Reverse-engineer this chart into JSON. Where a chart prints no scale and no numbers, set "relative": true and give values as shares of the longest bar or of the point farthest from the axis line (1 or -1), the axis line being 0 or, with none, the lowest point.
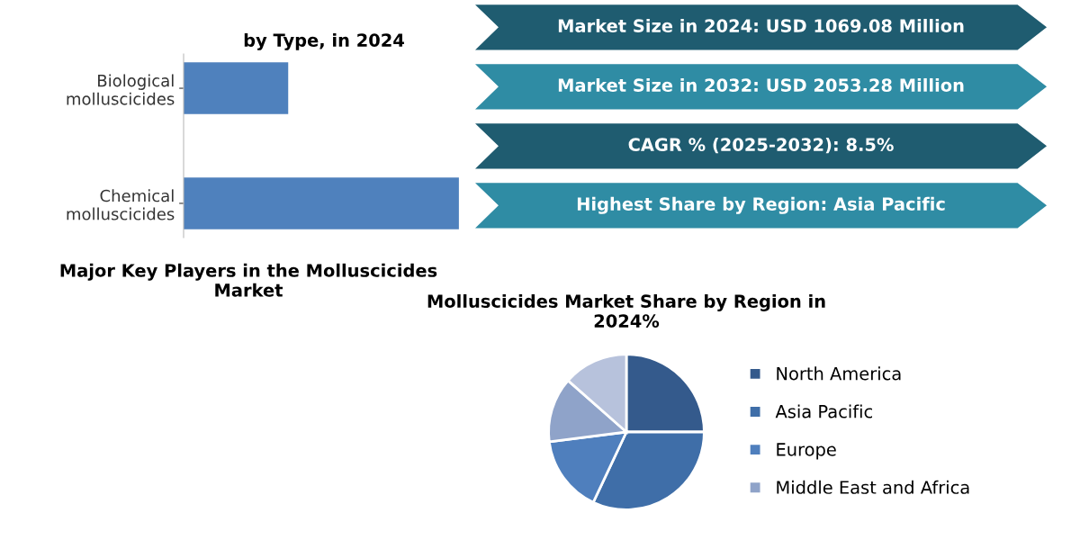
{
  "chart_data": [
    {
      "type": "bar",
      "title": "by Type, in 2024",
      "orientation": "horizontal",
      "relative": true,
      "categories": [
        "Biological\nmolluscicides",
        "Chemical\nmolluscicides"
      ],
      "values": [
        0.38,
        1
      ],
      "color": "#4f81bd"
    },
    {
      "type": "other",
      "annotations": [
        "Market Size in 2024: USD 1069.08 Million",
        "Market Size in 2032: USD 2053.28 Million",
        "CAGR % (2025-2032): 8.5%",
        "Highest Share by Region: Asia Pacific"
      ],
      "colors": [
        "#1f5c70",
        "#2f8ca4",
        "#1f5c70",
        "#2f8ca4"
      ]
    },
    {
      "type": "other",
      "title": "Major Key Players in the Molluscicides\nMarket"
    },
    {
      "type": "pie",
      "title": "Molluscicides Market Share by Region in\n2024%",
      "legend": "right",
      "categories": [
        "North America",
        "Asia Pacific",
        "Europe",
        "Middle East and Africa",
        null
      ],
      "values": [
        25,
        32,
        16,
        13.5,
        13.5
      ],
      "colors": [
        "#345a8c",
        "#3f6ea8",
        "#4f7fbd",
        "#8fa3c9",
        "#b7c2dc"
      ]
    }
  ]
}
